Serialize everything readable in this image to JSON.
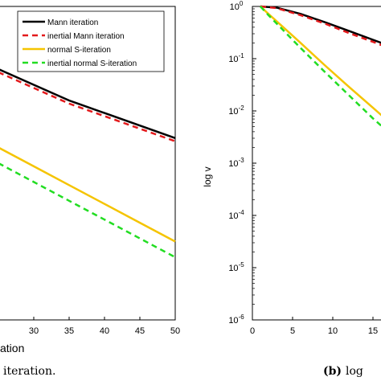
{
  "chart_data": [
    {
      "type": "line",
      "title": "",
      "xlabel": "Iteration",
      "ylabel": "",
      "xlim": [
        25,
        50
      ],
      "xticks": [
        "30",
        "35",
        "40",
        "45",
        "50"
      ],
      "legend_position": "top-right",
      "series": [
        {
          "name": "Mann iteration",
          "color": "#000000",
          "style": "solid",
          "x": [
            25,
            30,
            35,
            40,
            45,
            50
          ],
          "y": [
            0.8,
            0.75,
            0.7,
            0.66,
            0.62,
            0.58
          ]
        },
        {
          "name": "inertial Mann iteration",
          "color": "#e31a1c",
          "style": "dashed",
          "x": [
            25,
            30,
            35,
            40,
            45,
            50
          ],
          "y": [
            0.79,
            0.74,
            0.69,
            0.65,
            0.61,
            0.57
          ]
        },
        {
          "name": "normal S-iteration",
          "color": "#f5c400",
          "style": "solid",
          "x": [
            25,
            30,
            35,
            40,
            45,
            50
          ],
          "y": [
            0.55,
            0.49,
            0.43,
            0.37,
            0.31,
            0.25
          ]
        },
        {
          "name": "inertial normal S-iteration",
          "color": "#22dd22",
          "style": "dashed",
          "x": [
            25,
            30,
            35,
            40,
            45,
            50
          ],
          "y": [
            0.5,
            0.44,
            0.38,
            0.32,
            0.26,
            0.2
          ]
        }
      ]
    },
    {
      "type": "line",
      "title": "",
      "xlabel": "",
      "ylabel": "log v",
      "yscale": "log",
      "xlim": [
        0,
        18
      ],
      "ylim": [
        1e-06,
        1
      ],
      "xticks": [
        "0",
        "5",
        "10",
        "15"
      ],
      "yticks": [
        "10^0",
        "10^-1",
        "10^-2",
        "10^-3",
        "10^-4",
        "10^-5",
        "10^-6"
      ],
      "series": [
        {
          "name": "Mann iteration",
          "color": "#000000",
          "style": "solid",
          "x": [
            1,
            3,
            6,
            9,
            12,
            15,
            18
          ],
          "y": [
            1,
            0.95,
            0.72,
            0.5,
            0.34,
            0.23,
            0.155
          ]
        },
        {
          "name": "inertial Mann iteration",
          "color": "#e31a1c",
          "style": "dashed",
          "x": [
            1,
            3,
            6,
            9,
            12,
            15,
            18
          ],
          "y": [
            1,
            0.93,
            0.68,
            0.47,
            0.31,
            0.21,
            0.14
          ]
        },
        {
          "name": "normal S-iteration",
          "color": "#f5c400",
          "style": "solid",
          "x": [
            1,
            2,
            4,
            6,
            9,
            12,
            15,
            18
          ],
          "y": [
            1,
            0.72,
            0.38,
            0.2,
            0.075,
            0.029,
            0.0115,
            0.0045
          ]
        },
        {
          "name": "inertial normal S-iteration",
          "color": "#22dd22",
          "style": "dashed",
          "x": [
            1,
            2,
            4,
            6,
            9,
            12,
            15,
            18
          ],
          "y": [
            1,
            0.68,
            0.33,
            0.16,
            0.056,
            0.02,
            0.0072,
            0.0028
          ]
        }
      ]
    }
  ],
  "captions": {
    "left_fragment": "iteration.",
    "right_label": "(b)",
    "right_fragment": "log"
  },
  "left_axis_label_fragment": "ation"
}
